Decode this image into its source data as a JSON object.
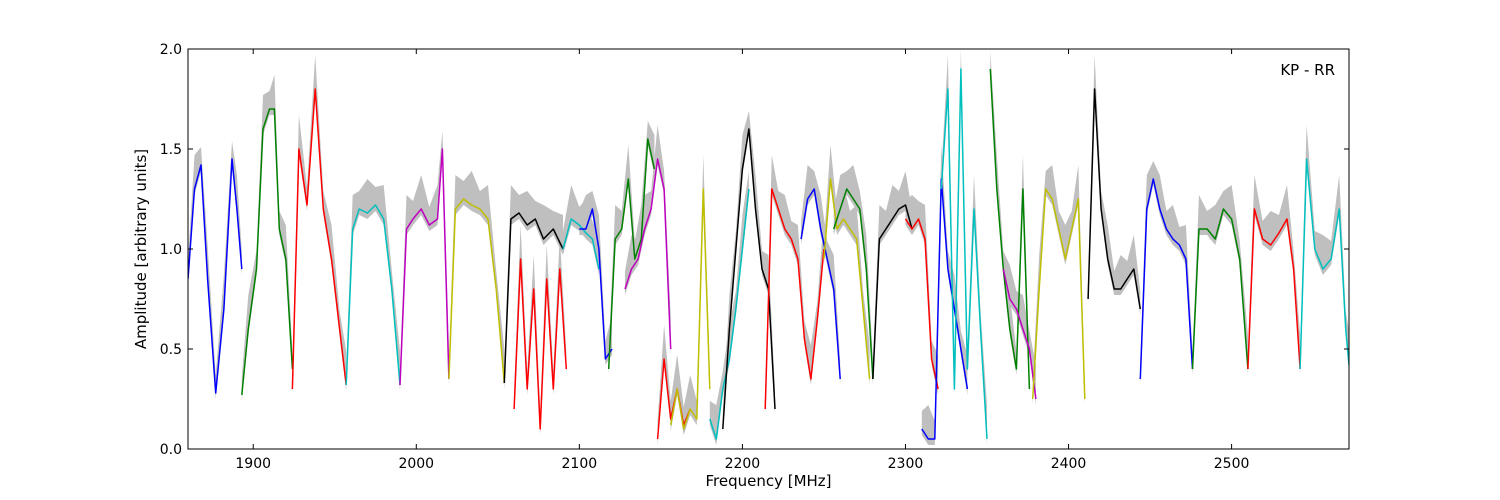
{
  "chart_data": {
    "type": "line",
    "title": "",
    "xlabel": "Frequency [MHz]",
    "ylabel": "Amplitude [arbitrary units]",
    "annotation": "KP - RR",
    "annotation_position": "top-right",
    "xlim": [
      1860,
      2572
    ],
    "ylim": [
      0.0,
      2.0
    ],
    "xticks": [
      1900,
      2000,
      2100,
      2200,
      2300,
      2400,
      2500
    ],
    "xtick_labels": [
      "1900",
      "2000",
      "2100",
      "2200",
      "2300",
      "2400",
      "2500"
    ],
    "yticks": [
      0.0,
      0.5,
      1.0,
      1.5,
      2.0
    ],
    "ytick_labels": [
      "0.0",
      "0.5",
      "1.0",
      "1.5",
      "2.0"
    ],
    "grid": false,
    "legend": "none",
    "envelope_color": "#bfbfbf",
    "series_colors": [
      "#0000ff",
      "#008000",
      "#ff0000",
      "#00bfbf",
      "#bf00bf",
      "#bfbf00",
      "#000000"
    ],
    "segments": [
      {
        "color": "#0000ff",
        "x": [
          1860,
          1864,
          1868,
          1872,
          1877,
          1882,
          1887,
          1890,
          1893
        ],
        "y": [
          0.85,
          1.3,
          1.42,
          0.85,
          0.28,
          0.7,
          1.45,
          1.2,
          0.9
        ]
      },
      {
        "color": "#008000",
        "x": [
          1893,
          1897,
          1902,
          1906,
          1910,
          1913,
          1916,
          1920,
          1924
        ],
        "y": [
          0.27,
          0.6,
          0.9,
          1.6,
          1.7,
          1.7,
          1.1,
          0.95,
          0.4
        ]
      },
      {
        "color": "#ff0000",
        "x": [
          1924,
          1928,
          1933,
          1938,
          1943,
          1948,
          1953,
          1957
        ],
        "y": [
          0.3,
          1.5,
          1.22,
          1.8,
          1.2,
          0.95,
          0.6,
          0.32
        ]
      },
      {
        "color": "#00bfbf",
        "x": [
          1957,
          1961,
          1965,
          1970,
          1975,
          1980,
          1985,
          1990
        ],
        "y": [
          0.32,
          1.1,
          1.2,
          1.18,
          1.22,
          1.15,
          0.8,
          0.32
        ]
      },
      {
        "color": "#bf00bf",
        "x": [
          1990,
          1994,
          1998,
          2003,
          2008,
          2013,
          2016,
          2020
        ],
        "y": [
          0.32,
          1.1,
          1.15,
          1.2,
          1.12,
          1.15,
          1.5,
          0.35
        ]
      },
      {
        "color": "#bfbf00",
        "x": [
          2020,
          2024,
          2029,
          2034,
          2039,
          2044,
          2049,
          2054
        ],
        "y": [
          0.35,
          1.2,
          1.25,
          1.22,
          1.2,
          1.15,
          0.8,
          0.33
        ]
      },
      {
        "color": "#000000",
        "x": [
          2054,
          2058,
          2063,
          2068,
          2073,
          2078,
          2084,
          2090
        ],
        "y": [
          0.33,
          1.15,
          1.18,
          1.12,
          1.15,
          1.05,
          1.1,
          1.0
        ]
      },
      {
        "color": "#ff0000",
        "x": [
          2060,
          2064,
          2068,
          2072,
          2076,
          2080,
          2084,
          2088,
          2092
        ],
        "y": [
          0.2,
          0.95,
          0.3,
          0.8,
          0.1,
          0.85,
          0.3,
          0.9,
          0.4
        ]
      },
      {
        "color": "#00bfbf",
        "x": [
          2090,
          2095,
          2100,
          2104,
          2108,
          2112
        ],
        "y": [
          1.0,
          1.15,
          1.12,
          1.08,
          1.05,
          0.9
        ]
      },
      {
        "color": "#0000ff",
        "x": [
          2100,
          2104,
          2108,
          2112,
          2116,
          2120
        ],
        "y": [
          1.1,
          1.1,
          1.2,
          1.0,
          0.45,
          0.5
        ]
      },
      {
        "color": "#008000",
        "x": [
          2118,
          2122,
          2126,
          2130,
          2134,
          2138,
          2142,
          2146
        ],
        "y": [
          0.4,
          1.05,
          1.1,
          1.35,
          0.95,
          1.05,
          1.55,
          1.4
        ]
      },
      {
        "color": "#bf00bf",
        "x": [
          2128,
          2132,
          2136,
          2140,
          2144,
          2148,
          2152,
          2156
        ],
        "y": [
          0.8,
          0.9,
          0.95,
          1.1,
          1.2,
          1.45,
          1.3,
          0.5
        ]
      },
      {
        "color": "#ff0000",
        "x": [
          2148,
          2152,
          2156,
          2160,
          2164,
          2168
        ],
        "y": [
          0.05,
          0.45,
          0.15,
          0.3,
          0.12,
          0.2
        ]
      },
      {
        "color": "#bfbf00",
        "x": [
          2156,
          2160,
          2164,
          2168,
          2172,
          2176,
          2180
        ],
        "y": [
          0.12,
          0.3,
          0.1,
          0.2,
          0.15,
          1.3,
          0.3
        ]
      },
      {
        "color": "#00bfbf",
        "x": [
          2180,
          2184,
          2188,
          2192,
          2196,
          2200,
          2204
        ],
        "y": [
          0.15,
          0.05,
          0.3,
          0.45,
          0.7,
          1.0,
          1.3
        ]
      },
      {
        "color": "#000000",
        "x": [
          2188,
          2192,
          2196,
          2200,
          2204,
          2208,
          2212,
          2216,
          2220
        ],
        "y": [
          0.1,
          0.6,
          1.0,
          1.4,
          1.6,
          1.2,
          0.9,
          0.8,
          0.2
        ]
      },
      {
        "color": "#ff0000",
        "x": [
          2214,
          2218,
          2222,
          2226,
          2230,
          2234,
          2238,
          2242,
          2246,
          2250
        ],
        "y": [
          0.2,
          1.3,
          1.2,
          1.1,
          1.05,
          0.95,
          0.55,
          0.35,
          0.65,
          1.0
        ]
      },
      {
        "color": "#0000ff",
        "x": [
          2236,
          2240,
          2244,
          2248,
          2252,
          2256,
          2260
        ],
        "y": [
          1.05,
          1.25,
          1.3,
          1.1,
          0.95,
          0.8,
          0.35
        ]
      },
      {
        "color": "#bfbf00",
        "x": [
          2250,
          2254,
          2258,
          2262,
          2266,
          2270,
          2274,
          2278
        ],
        "y": [
          0.95,
          1.35,
          1.1,
          1.15,
          1.1,
          1.05,
          0.7,
          0.35
        ]
      },
      {
        "color": "#008000",
        "x": [
          2256,
          2260,
          2264,
          2268,
          2272,
          2276,
          2280
        ],
        "y": [
          1.1,
          1.2,
          1.3,
          1.25,
          1.2,
          0.9,
          0.35
        ]
      },
      {
        "color": "#000000",
        "x": [
          2280,
          2284,
          2288,
          2292,
          2296,
          2300,
          2304
        ],
        "y": [
          0.35,
          1.05,
          1.1,
          1.15,
          1.2,
          1.22,
          1.1
        ]
      },
      {
        "color": "#ff0000",
        "x": [
          2300,
          2304,
          2308,
          2312,
          2316,
          2320
        ],
        "y": [
          1.15,
          1.1,
          1.15,
          1.05,
          0.45,
          0.3
        ]
      },
      {
        "color": "#0000ff",
        "x": [
          2310,
          2314,
          2318,
          2322,
          2326,
          2330,
          2334,
          2338
        ],
        "y": [
          0.1,
          0.05,
          0.05,
          1.35,
          0.9,
          0.7,
          0.5,
          0.3
        ]
      },
      {
        "color": "#00bfbf",
        "x": [
          2322,
          2326,
          2330,
          2334,
          2338,
          2342,
          2346,
          2350
        ],
        "y": [
          1.3,
          1.8,
          0.3,
          1.9,
          0.4,
          1.2,
          0.6,
          0.05
        ]
      },
      {
        "color": "#008000",
        "x": [
          2352,
          2356,
          2360,
          2364,
          2368,
          2372,
          2376
        ],
        "y": [
          1.9,
          1.3,
          0.9,
          0.6,
          0.4,
          1.3,
          0.3
        ]
      },
      {
        "color": "#bf00bf",
        "x": [
          2360,
          2364,
          2368,
          2372,
          2376,
          2380
        ],
        "y": [
          0.9,
          0.75,
          0.7,
          0.6,
          0.5,
          0.25
        ]
      },
      {
        "color": "#bfbf00",
        "x": [
          2378,
          2382,
          2386,
          2390,
          2394,
          2398,
          2402,
          2406,
          2410
        ],
        "y": [
          0.25,
          0.8,
          1.3,
          1.25,
          1.1,
          0.95,
          1.1,
          1.25,
          0.25
        ]
      },
      {
        "color": "#000000",
        "x": [
          2412,
          2416,
          2420,
          2424,
          2428,
          2432,
          2436,
          2440,
          2444
        ],
        "y": [
          0.75,
          1.8,
          1.2,
          0.95,
          0.8,
          0.8,
          0.85,
          0.9,
          0.7
        ]
      },
      {
        "color": "#0000ff",
        "x": [
          2444,
          2448,
          2452,
          2456,
          2460,
          2464,
          2468,
          2472,
          2476
        ],
        "y": [
          0.35,
          1.2,
          1.35,
          1.2,
          1.1,
          1.05,
          1.02,
          0.95,
          0.4
        ]
      },
      {
        "color": "#008000",
        "x": [
          2476,
          2480,
          2485,
          2490,
          2495,
          2500,
          2505,
          2510
        ],
        "y": [
          0.4,
          1.1,
          1.1,
          1.05,
          1.2,
          1.15,
          0.95,
          0.4
        ]
      },
      {
        "color": "#ff0000",
        "x": [
          2510,
          2514,
          2519,
          2524,
          2529,
          2534,
          2538,
          2542
        ],
        "y": [
          0.4,
          1.2,
          1.05,
          1.02,
          1.08,
          1.15,
          0.9,
          0.4
        ]
      },
      {
        "color": "#00bfbf",
        "x": [
          2542,
          2546,
          2551,
          2556,
          2561,
          2566,
          2570,
          2572
        ],
        "y": [
          0.4,
          1.45,
          1.0,
          0.9,
          0.95,
          1.2,
          0.6,
          0.42
        ]
      }
    ]
  }
}
